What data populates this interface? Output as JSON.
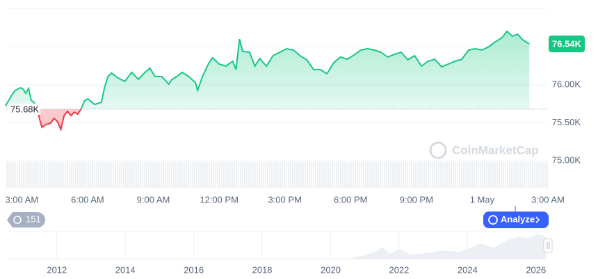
{
  "chart_data": {
    "type": "line",
    "x": [
      2.26,
      2.48,
      2.69,
      2.94,
      3.06,
      3.18,
      3.31,
      3.43,
      3.55,
      3.71,
      3.8,
      3.92,
      4.1,
      4.32,
      4.47,
      4.63,
      4.78,
      4.93,
      5.09,
      5.24,
      5.4,
      5.55,
      5.7,
      5.86,
      6.01,
      6.32,
      6.63,
      6.78,
      6.93,
      7.09,
      7.39,
      7.7,
      8.01,
      8.32,
      8.62,
      8.84,
      9.08,
      9.39,
      9.7,
      9.85,
      10.07,
      10.31,
      10.62,
      10.93,
      11.02,
      11.24,
      11.54,
      11.7,
      12.0,
      12.31,
      12.62,
      12.77,
      12.93,
      13.08,
      13.39,
      13.63,
      13.85,
      14.16,
      14.46,
      14.77,
      15.08,
      15.39,
      15.69,
      16.0,
      16.31,
      16.62,
      16.92,
      17.23,
      17.54,
      17.85,
      18.15,
      18.46,
      18.77,
      19.08,
      19.38,
      19.69,
      20.0,
      20.3,
      20.61,
      20.92,
      21.23,
      21.53,
      21.84,
      22.15,
      22.46,
      22.76,
      23.07,
      23.38,
      23.68,
      23.99,
      24.3,
      24.61,
      24.91,
      25.13,
      25.38,
      25.62,
      25.84,
      26.15
    ],
    "values": [
      75725,
      75835,
      75927,
      75963,
      75945,
      75890,
      75954,
      75798,
      75771,
      75697,
      75560,
      75441,
      75477,
      75496,
      75560,
      75514,
      75413,
      75597,
      75652,
      75597,
      75642,
      75615,
      75679,
      75789,
      75817,
      75743,
      75771,
      75972,
      76110,
      76156,
      76092,
      76046,
      76165,
      76073,
      76165,
      76220,
      76110,
      76110,
      76009,
      76073,
      76110,
      76165,
      76110,
      76028,
      75927,
      76110,
      76293,
      76358,
      76275,
      76248,
      76312,
      76202,
      76605,
      76440,
      76431,
      76248,
      76348,
      76248,
      76385,
      76431,
      76477,
      76459,
      76385,
      76330,
      76202,
      76202,
      76147,
      76293,
      76367,
      76339,
      76394,
      76459,
      76477,
      76459,
      76431,
      76367,
      76403,
      76431,
      76330,
      76385,
      76248,
      76312,
      76339,
      76238,
      76275,
      76312,
      76339,
      76459,
      76477,
      76459,
      76504,
      76569,
      76624,
      76706,
      76642,
      76669,
      76596,
      76540
    ],
    "color_up": "#16c784",
    "color_down": "#ea3943",
    "xlim": [
      2.26,
      27
    ],
    "ylim": [
      74643,
      77009
    ],
    "xticks": [
      {
        "value": 3,
        "label": "3:00 AM"
      },
      {
        "value": 6,
        "label": "6:00 AM"
      },
      {
        "value": 9,
        "label": "9:00 AM"
      },
      {
        "value": 12,
        "label": "12:00 PM"
      },
      {
        "value": 15,
        "label": "3:00 PM"
      },
      {
        "value": 18,
        "label": "6:00 PM"
      },
      {
        "value": 21,
        "label": "9:00 PM"
      },
      {
        "value": 24,
        "label": "1 May"
      },
      {
        "value": 27,
        "label": "3:00 AM"
      }
    ],
    "yticks": [
      {
        "value": 76000,
        "label": "76.00K"
      },
      {
        "value": 75500,
        "label": "75.50K"
      },
      {
        "value": 75000,
        "label": "75.00K"
      }
    ],
    "grid": true,
    "reference": {
      "value": 75680,
      "label": "75.68K"
    },
    "last_price": {
      "value": 76540,
      "label": "76.54K"
    },
    "watermark": "CoinMarketCap",
    "badge": 151,
    "button": "Analyze",
    "navigator": {
      "xlim": [
        2010.5,
        2026.35
      ],
      "xticks": [
        2012,
        2014,
        2016,
        2018,
        2020,
        2022,
        2024,
        2026
      ]
    }
  }
}
